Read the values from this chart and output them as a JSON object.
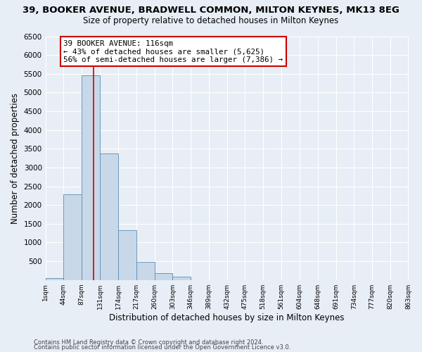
{
  "title": "39, BOOKER AVENUE, BRADWELL COMMON, MILTON KEYNES, MK13 8EG",
  "subtitle": "Size of property relative to detached houses in Milton Keynes",
  "xlabel": "Distribution of detached houses by size in Milton Keynes",
  "ylabel": "Number of detached properties",
  "bar_color": "#c8d8e8",
  "bar_edge_color": "#5b8db8",
  "bg_color": "#e8eef5",
  "grid_color": "#ffffff",
  "annotation_box_color": "#cc0000",
  "vline_color": "#cc0000",
  "vline_x": 116,
  "annotation_title": "39 BOOKER AVENUE: 116sqm",
  "annotation_line1": "← 43% of detached houses are smaller (5,625)",
  "annotation_line2": "56% of semi-detached houses are larger (7,386) →",
  "footer_line1": "Contains HM Land Registry data © Crown copyright and database right 2024.",
  "footer_line2": "Contains public sector information licensed under the Open Government Licence v3.0.",
  "bin_edges": [
    1,
    44,
    87,
    131,
    174,
    217,
    260,
    303,
    346,
    389,
    432,
    475,
    518,
    561,
    604,
    648,
    691,
    734,
    777,
    820,
    863
  ],
  "bin_labels": [
    "1sqm",
    "44sqm",
    "87sqm",
    "131sqm",
    "174sqm",
    "217sqm",
    "260sqm",
    "303sqm",
    "346sqm",
    "389sqm",
    "432sqm",
    "475sqm",
    "518sqm",
    "561sqm",
    "604sqm",
    "648sqm",
    "691sqm",
    "734sqm",
    "777sqm",
    "820sqm",
    "863sqm"
  ],
  "bar_heights": [
    60,
    2280,
    5450,
    3380,
    1330,
    480,
    190,
    80,
    0,
    0,
    0,
    0,
    0,
    0,
    0,
    0,
    0,
    0,
    0,
    0
  ],
  "ylim": [
    0,
    6500
  ],
  "yticks": [
    0,
    500,
    1000,
    1500,
    2000,
    2500,
    3000,
    3500,
    4000,
    4500,
    5000,
    5500,
    6000,
    6500
  ]
}
